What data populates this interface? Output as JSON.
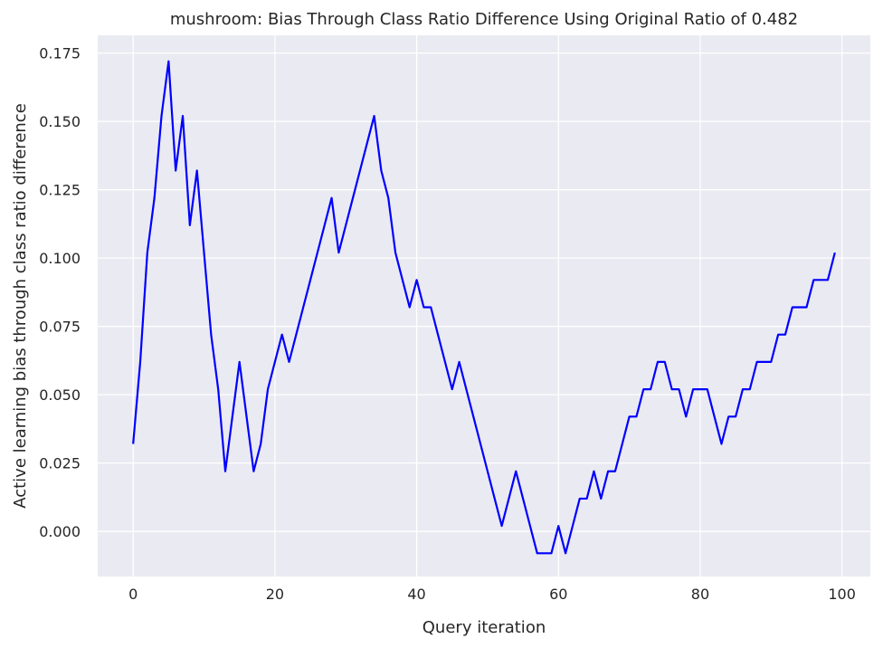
{
  "colors": {
    "plot_background": "#eaeaf2",
    "grid": "#ffffff",
    "line": "#0000ff",
    "text": "#262626"
  },
  "chart_data": {
    "type": "line",
    "title": "mushroom: Bias Through Class Ratio Difference Using Original Ratio of 0.482",
    "xlabel": "Query iteration",
    "ylabel": "Active learning bias through class ratio difference",
    "xlim": [
      -5,
      104
    ],
    "ylim": [
      -0.0165,
      0.1815
    ],
    "x_ticks": [
      0,
      20,
      40,
      60,
      80,
      100
    ],
    "x_tick_labels": [
      "0",
      "20",
      "40",
      "60",
      "80",
      "100"
    ],
    "y_ticks": [
      0.0,
      0.025,
      0.05,
      0.075,
      0.1,
      0.125,
      0.15,
      0.175
    ],
    "y_tick_labels": [
      "0.000",
      "0.025",
      "0.050",
      "0.075",
      "0.100",
      "0.125",
      "0.150",
      "0.175"
    ],
    "grid": true,
    "series": [
      {
        "color": "#0000ff",
        "x": [
          0,
          1,
          2,
          3,
          4,
          5,
          6,
          7,
          8,
          9,
          10,
          11,
          12,
          13,
          14,
          15,
          16,
          17,
          18,
          19,
          20,
          21,
          22,
          23,
          24,
          25,
          26,
          27,
          28,
          29,
          30,
          31,
          32,
          33,
          34,
          35,
          36,
          37,
          38,
          39,
          40,
          41,
          42,
          43,
          44,
          45,
          46,
          47,
          48,
          49,
          50,
          51,
          52,
          53,
          54,
          55,
          56,
          57,
          58,
          59,
          60,
          61,
          62,
          63,
          64,
          65,
          66,
          67,
          68,
          69,
          70,
          71,
          72,
          73,
          74,
          75,
          76,
          77,
          78,
          79,
          80,
          81,
          82,
          83,
          84,
          85,
          86,
          87,
          88,
          89,
          90,
          91,
          92,
          93,
          94,
          95,
          96,
          97,
          98,
          99
        ],
        "y": [
          0.032,
          0.062,
          0.102,
          0.122,
          0.152,
          0.172,
          0.132,
          0.152,
          0.112,
          0.132,
          0.102,
          0.072,
          0.052,
          0.022,
          0.042,
          0.062,
          0.042,
          0.022,
          0.032,
          0.052,
          0.062,
          0.072,
          0.062,
          0.072,
          0.082,
          0.092,
          0.102,
          0.112,
          0.122,
          0.102,
          0.112,
          0.122,
          0.132,
          0.142,
          0.152,
          0.132,
          0.122,
          0.102,
          0.092,
          0.082,
          0.092,
          0.082,
          0.082,
          0.072,
          0.062,
          0.052,
          0.062,
          0.052,
          0.042,
          0.032,
          0.022,
          0.012,
          0.002,
          0.012,
          0.022,
          0.012,
          0.002,
          -0.008,
          -0.008,
          -0.008,
          0.002,
          -0.008,
          0.002,
          0.012,
          0.012,
          0.022,
          0.012,
          0.022,
          0.022,
          0.032,
          0.042,
          0.042,
          0.052,
          0.052,
          0.062,
          0.062,
          0.052,
          0.052,
          0.042,
          0.052,
          0.052,
          0.052,
          0.042,
          0.032,
          0.042,
          0.042,
          0.052,
          0.052,
          0.062,
          0.062,
          0.062,
          0.072,
          0.072,
          0.082,
          0.082,
          0.082,
          0.092,
          0.092,
          0.092,
          0.102
        ]
      }
    ]
  }
}
